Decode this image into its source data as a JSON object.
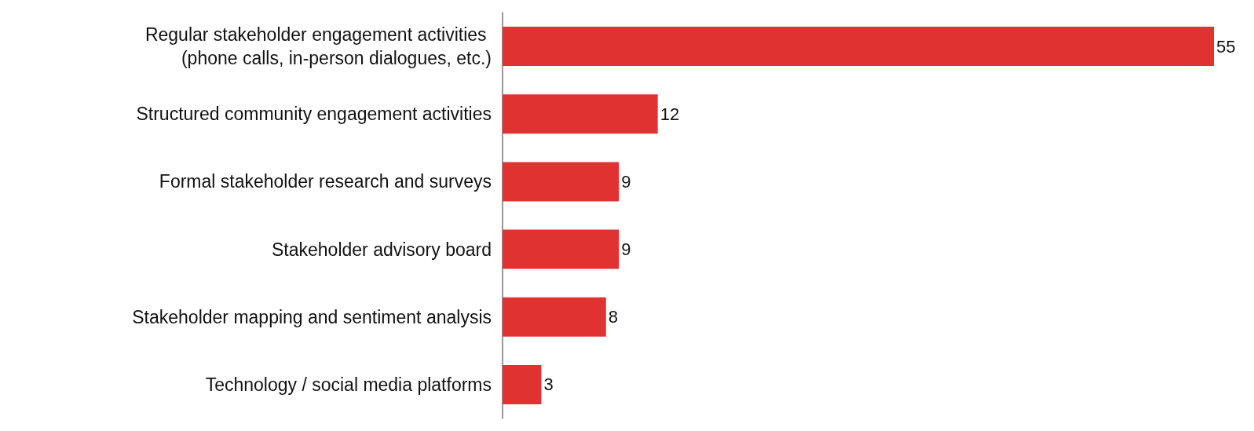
{
  "chart_data": {
    "type": "bar",
    "orientation": "horizontal",
    "categories": [
      "Regular stakeholder engagement activities (phone calls, in-person dialogues, etc.)",
      "Structured community engagement activities",
      "Formal stakeholder research and surveys",
      "Stakeholder advisory board",
      "Stakeholder mapping and sentiment analysis",
      "Technology / social media platforms"
    ],
    "values": [
      55,
      12,
      9,
      9,
      8,
      3
    ],
    "color": "#e03331",
    "data_labels": true,
    "xlim": [
      0,
      55
    ],
    "tick_labels": "y"
  }
}
